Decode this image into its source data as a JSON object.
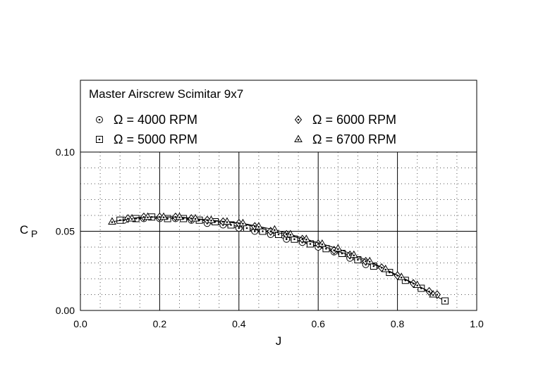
{
  "chart_data": {
    "type": "scatter",
    "title": "Master Airscrew Scimitar 9x7",
    "xlabel": "J",
    "ylabel": "C",
    "ylabel_subscript": "P",
    "xlim": [
      0.0,
      1.0
    ],
    "ylim": [
      0.0,
      0.1
    ],
    "xticks": [
      "0.0",
      "0.2",
      "0.4",
      "0.6",
      "0.8",
      "1.0"
    ],
    "yticks": [
      "0.00",
      "0.05",
      "0.10"
    ],
    "grid": "major solid, minor dotted",
    "legend_position": "top, inside framed panel above plot area",
    "series": [
      {
        "name": "Ω = 4000 RPM",
        "marker": "circle-dot",
        "points": [
          [
            0.11,
            0.057
          ],
          [
            0.16,
            0.058
          ],
          [
            0.2,
            0.058
          ],
          [
            0.24,
            0.058
          ],
          [
            0.28,
            0.057
          ],
          [
            0.32,
            0.055
          ],
          [
            0.36,
            0.054
          ],
          [
            0.4,
            0.052
          ],
          [
            0.44,
            0.05
          ],
          [
            0.48,
            0.048
          ],
          [
            0.52,
            0.045
          ],
          [
            0.56,
            0.043
          ],
          [
            0.6,
            0.04
          ],
          [
            0.64,
            0.037
          ],
          [
            0.68,
            0.033
          ],
          [
            0.72,
            0.029
          ]
        ]
      },
      {
        "name": "Ω = 5000 RPM",
        "marker": "square-dot",
        "points": [
          [
            0.1,
            0.057
          ],
          [
            0.14,
            0.058
          ],
          [
            0.18,
            0.059
          ],
          [
            0.22,
            0.058
          ],
          [
            0.26,
            0.058
          ],
          [
            0.3,
            0.057
          ],
          [
            0.34,
            0.056
          ],
          [
            0.38,
            0.054
          ],
          [
            0.42,
            0.052
          ],
          [
            0.46,
            0.05
          ],
          [
            0.5,
            0.048
          ],
          [
            0.54,
            0.045
          ],
          [
            0.58,
            0.042
          ],
          [
            0.62,
            0.039
          ],
          [
            0.66,
            0.036
          ],
          [
            0.7,
            0.032
          ],
          [
            0.74,
            0.028
          ],
          [
            0.78,
            0.024
          ],
          [
            0.82,
            0.019
          ],
          [
            0.86,
            0.014
          ],
          [
            0.92,
            0.006
          ]
        ]
      },
      {
        "name": "Ω = 6000 RPM",
        "marker": "diamond-dot",
        "points": [
          [
            0.12,
            0.058
          ],
          [
            0.16,
            0.059
          ],
          [
            0.2,
            0.059
          ],
          [
            0.24,
            0.059
          ],
          [
            0.28,
            0.058
          ],
          [
            0.32,
            0.057
          ],
          [
            0.36,
            0.056
          ],
          [
            0.4,
            0.055
          ],
          [
            0.44,
            0.053
          ],
          [
            0.48,
            0.05
          ],
          [
            0.52,
            0.048
          ],
          [
            0.56,
            0.045
          ],
          [
            0.6,
            0.042
          ],
          [
            0.64,
            0.038
          ],
          [
            0.68,
            0.035
          ],
          [
            0.72,
            0.031
          ],
          [
            0.76,
            0.027
          ],
          [
            0.8,
            0.022
          ],
          [
            0.84,
            0.017
          ],
          [
            0.88,
            0.012
          ],
          [
            0.9,
            0.01
          ]
        ]
      },
      {
        "name": "Ω = 6700 RPM",
        "marker": "triangle-dot",
        "points": [
          [
            0.08,
            0.056
          ],
          [
            0.13,
            0.058
          ],
          [
            0.17,
            0.059
          ],
          [
            0.21,
            0.059
          ],
          [
            0.25,
            0.059
          ],
          [
            0.29,
            0.058
          ],
          [
            0.33,
            0.057
          ],
          [
            0.37,
            0.056
          ],
          [
            0.41,
            0.055
          ],
          [
            0.45,
            0.053
          ],
          [
            0.49,
            0.051
          ],
          [
            0.53,
            0.048
          ],
          [
            0.57,
            0.045
          ],
          [
            0.61,
            0.042
          ],
          [
            0.65,
            0.039
          ],
          [
            0.69,
            0.035
          ],
          [
            0.73,
            0.031
          ],
          [
            0.77,
            0.026
          ],
          [
            0.81,
            0.021
          ],
          [
            0.85,
            0.016
          ],
          [
            0.89,
            0.01
          ]
        ]
      }
    ]
  }
}
